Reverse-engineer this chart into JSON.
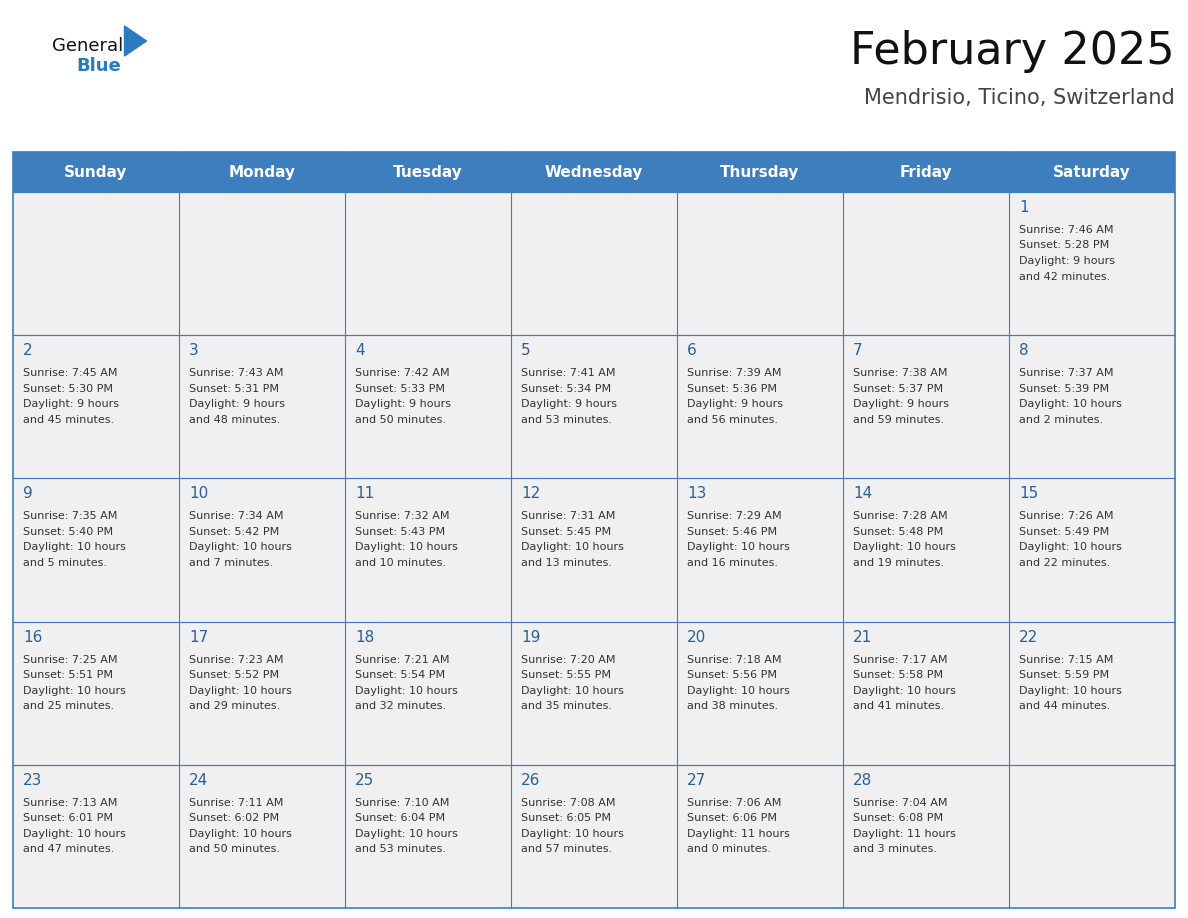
{
  "title": "February 2025",
  "subtitle": "Mendrisio, Ticino, Switzerland",
  "days_of_week": [
    "Sunday",
    "Monday",
    "Tuesday",
    "Wednesday",
    "Thursday",
    "Friday",
    "Saturday"
  ],
  "header_bg_color": "#3d7ebf",
  "header_text_color": "#ffffff",
  "cell_bg_color": "#f0f0f0",
  "title_color": "#111111",
  "subtitle_color": "#444444",
  "day_number_color": "#2a6099",
  "cell_text_color": "#333333",
  "grid_color": "#3d7ebf",
  "logo_general_color": "#111111",
  "logo_blue_color": "#2a7abf",
  "calendar_data": [
    [
      null,
      null,
      null,
      null,
      null,
      null,
      1
    ],
    [
      2,
      3,
      4,
      5,
      6,
      7,
      8
    ],
    [
      9,
      10,
      11,
      12,
      13,
      14,
      15
    ],
    [
      16,
      17,
      18,
      19,
      20,
      21,
      22
    ],
    [
      23,
      24,
      25,
      26,
      27,
      28,
      null
    ]
  ],
  "day_info": {
    "1": {
      "sunrise": "7:46 AM",
      "sunset": "5:28 PM",
      "daylight": "9 hours and 42 minutes."
    },
    "2": {
      "sunrise": "7:45 AM",
      "sunset": "5:30 PM",
      "daylight": "9 hours and 45 minutes."
    },
    "3": {
      "sunrise": "7:43 AM",
      "sunset": "5:31 PM",
      "daylight": "9 hours and 48 minutes."
    },
    "4": {
      "sunrise": "7:42 AM",
      "sunset": "5:33 PM",
      "daylight": "9 hours and 50 minutes."
    },
    "5": {
      "sunrise": "7:41 AM",
      "sunset": "5:34 PM",
      "daylight": "9 hours and 53 minutes."
    },
    "6": {
      "sunrise": "7:39 AM",
      "sunset": "5:36 PM",
      "daylight": "9 hours and 56 minutes."
    },
    "7": {
      "sunrise": "7:38 AM",
      "sunset": "5:37 PM",
      "daylight": "9 hours and 59 minutes."
    },
    "8": {
      "sunrise": "7:37 AM",
      "sunset": "5:39 PM",
      "daylight": "10 hours and 2 minutes."
    },
    "9": {
      "sunrise": "7:35 AM",
      "sunset": "5:40 PM",
      "daylight": "10 hours and 5 minutes."
    },
    "10": {
      "sunrise": "7:34 AM",
      "sunset": "5:42 PM",
      "daylight": "10 hours and 7 minutes."
    },
    "11": {
      "sunrise": "7:32 AM",
      "sunset": "5:43 PM",
      "daylight": "10 hours and 10 minutes."
    },
    "12": {
      "sunrise": "7:31 AM",
      "sunset": "5:45 PM",
      "daylight": "10 hours and 13 minutes."
    },
    "13": {
      "sunrise": "7:29 AM",
      "sunset": "5:46 PM",
      "daylight": "10 hours and 16 minutes."
    },
    "14": {
      "sunrise": "7:28 AM",
      "sunset": "5:48 PM",
      "daylight": "10 hours and 19 minutes."
    },
    "15": {
      "sunrise": "7:26 AM",
      "sunset": "5:49 PM",
      "daylight": "10 hours and 22 minutes."
    },
    "16": {
      "sunrise": "7:25 AM",
      "sunset": "5:51 PM",
      "daylight": "10 hours and 25 minutes."
    },
    "17": {
      "sunrise": "7:23 AM",
      "sunset": "5:52 PM",
      "daylight": "10 hours and 29 minutes."
    },
    "18": {
      "sunrise": "7:21 AM",
      "sunset": "5:54 PM",
      "daylight": "10 hours and 32 minutes."
    },
    "19": {
      "sunrise": "7:20 AM",
      "sunset": "5:55 PM",
      "daylight": "10 hours and 35 minutes."
    },
    "20": {
      "sunrise": "7:18 AM",
      "sunset": "5:56 PM",
      "daylight": "10 hours and 38 minutes."
    },
    "21": {
      "sunrise": "7:17 AM",
      "sunset": "5:58 PM",
      "daylight": "10 hours and 41 minutes."
    },
    "22": {
      "sunrise": "7:15 AM",
      "sunset": "5:59 PM",
      "daylight": "10 hours and 44 minutes."
    },
    "23": {
      "sunrise": "7:13 AM",
      "sunset": "6:01 PM",
      "daylight": "10 hours and 47 minutes."
    },
    "24": {
      "sunrise": "7:11 AM",
      "sunset": "6:02 PM",
      "daylight": "10 hours and 50 minutes."
    },
    "25": {
      "sunrise": "7:10 AM",
      "sunset": "6:04 PM",
      "daylight": "10 hours and 53 minutes."
    },
    "26": {
      "sunrise": "7:08 AM",
      "sunset": "6:05 PM",
      "daylight": "10 hours and 57 minutes."
    },
    "27": {
      "sunrise": "7:06 AM",
      "sunset": "6:06 PM",
      "daylight": "11 hours and 0 minutes."
    },
    "28": {
      "sunrise": "7:04 AM",
      "sunset": "6:08 PM",
      "daylight": "11 hours and 3 minutes."
    }
  }
}
